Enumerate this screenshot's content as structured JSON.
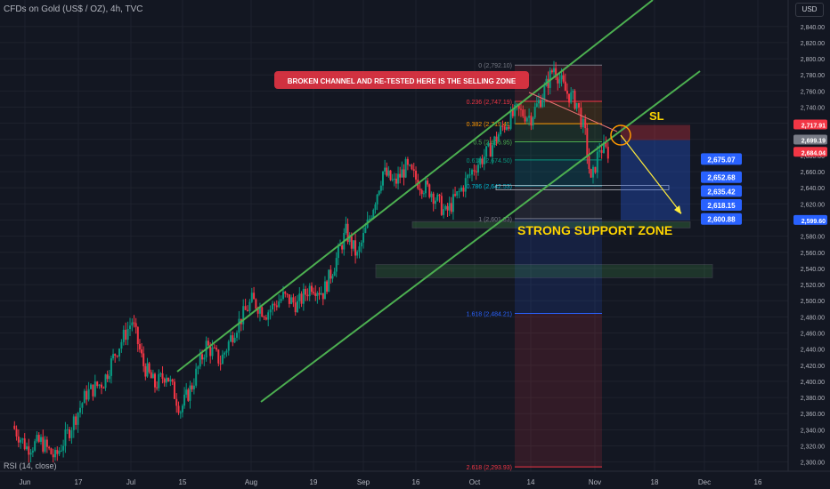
{
  "header": {
    "title": "CFDs on Gold (US$ / OZ), 4h, TVC",
    "currency": "USD"
  },
  "indicator_label": "RSI (14, close)",
  "chart_data": {
    "type": "candlestick",
    "title": "CFDs on Gold (US$ / OZ), 4h, TVC",
    "x_ticks": [
      "Jun",
      "17",
      "Jul",
      "15",
      "Aug",
      "19",
      "Sep",
      "16",
      "Oct",
      "14",
      "Nov",
      "18",
      "Dec",
      "16"
    ],
    "y_ticks": [
      2300,
      2320,
      2340,
      2360,
      2380,
      2400,
      2420,
      2440,
      2460,
      2480,
      2500,
      2520,
      2540,
      2560,
      2580,
      2600,
      2620,
      2640,
      2660,
      2680,
      2700,
      2720,
      2740,
      2760,
      2780,
      2800,
      2820,
      2840
    ],
    "y_tick_labels": [
      "2,300.00",
      "2,320.00",
      "2,340.00",
      "2,360.00",
      "2,380.00",
      "2,400.00",
      "2,420.00",
      "2,440.00",
      "2,460.00",
      "2,480.00",
      "2,500.00",
      "2,520.00",
      "2,540.00",
      "2,560.00",
      "2,580.00",
      "2,600.00",
      "2,620.00",
      "2,640.00",
      "2,660.00",
      "2,680.00",
      "2,700.00",
      "2,720.00",
      "2,740.00",
      "2,760.00",
      "2,780.00",
      "2,800.00",
      "2,820.00",
      "2,840.00"
    ],
    "ylim": [
      2293,
      2853
    ],
    "price_path": [
      {
        "x": 0,
        "y": 2345
      },
      {
        "x": 0.5,
        "y": 2318
      },
      {
        "x": 1,
        "y": 2325
      },
      {
        "x": 1.5,
        "y": 2305
      },
      {
        "x": 2,
        "y": 2340
      },
      {
        "x": 2.6,
        "y": 2385
      },
      {
        "x": 3.2,
        "y": 2400
      },
      {
        "x": 3.6,
        "y": 2435
      },
      {
        "x": 4.2,
        "y": 2475
      },
      {
        "x": 4.6,
        "y": 2420
      },
      {
        "x": 5.0,
        "y": 2395
      },
      {
        "x": 5.4,
        "y": 2410
      },
      {
        "x": 5.9,
        "y": 2365
      },
      {
        "x": 6.3,
        "y": 2395
      },
      {
        "x": 6.8,
        "y": 2445
      },
      {
        "x": 7.3,
        "y": 2425
      },
      {
        "x": 7.8,
        "y": 2465
      },
      {
        "x": 8.4,
        "y": 2500
      },
      {
        "x": 8.9,
        "y": 2485
      },
      {
        "x": 9.5,
        "y": 2505
      },
      {
        "x": 10.0,
        "y": 2495
      },
      {
        "x": 10.5,
        "y": 2520
      },
      {
        "x": 10.9,
        "y": 2510
      },
      {
        "x": 11.3,
        "y": 2545
      },
      {
        "x": 11.7,
        "y": 2585
      },
      {
        "x": 12.1,
        "y": 2555
      },
      {
        "x": 12.6,
        "y": 2610
      },
      {
        "x": 13.0,
        "y": 2660
      },
      {
        "x": 13.4,
        "y": 2645
      },
      {
        "x": 13.8,
        "y": 2665
      },
      {
        "x": 14.3,
        "y": 2645
      },
      {
        "x": 14.7,
        "y": 2635
      },
      {
        "x": 15.2,
        "y": 2608
      },
      {
        "x": 15.6,
        "y": 2630
      },
      {
        "x": 16.2,
        "y": 2665
      },
      {
        "x": 16.7,
        "y": 2685
      },
      {
        "x": 17.2,
        "y": 2715
      },
      {
        "x": 17.7,
        "y": 2735
      },
      {
        "x": 18.2,
        "y": 2728
      },
      {
        "x": 18.6,
        "y": 2755
      },
      {
        "x": 19.0,
        "y": 2790
      },
      {
        "x": 19.4,
        "y": 2760
      },
      {
        "x": 19.8,
        "y": 2745
      },
      {
        "x": 20.1,
        "y": 2705
      },
      {
        "x": 20.3,
        "y": 2645
      },
      {
        "x": 20.6,
        "y": 2690
      },
      {
        "x": 20.9,
        "y": 2684
      }
    ],
    "fib_levels": [
      {
        "ratio": "0",
        "price": 2792.1,
        "label": "0 (2,792.10)",
        "color": "#787b86"
      },
      {
        "ratio": "0.236",
        "price": 2747.19,
        "label": "0.236 (2,747.19)",
        "color": "#f23645"
      },
      {
        "ratio": "0.382",
        "price": 2719.41,
        "label": "0.382 (2,719.41)",
        "color": "#ff9800"
      },
      {
        "ratio": "0.5",
        "price": 2696.95,
        "label": "0.5 (2,696.95)",
        "color": "#4caf50"
      },
      {
        "ratio": "0.618",
        "price": 2674.5,
        "label": "0.618 (2,674.50)",
        "color": "#089981"
      },
      {
        "ratio": "0.786",
        "price": 2642.53,
        "label": "0.786 (2,642.53)",
        "color": "#00bcd4"
      },
      {
        "ratio": "1",
        "price": 2601.83,
        "label": "1 (2,601.83)",
        "color": "#787b86"
      },
      {
        "ratio": "1.618",
        "price": 2484.21,
        "label": "1.618 (2,484.21)",
        "color": "#2962ff"
      },
      {
        "ratio": "2.618",
        "price": 2293.93,
        "label": "2.618 (2,293.93)",
        "color": "#f23645"
      }
    ],
    "price_tags": [
      {
        "label": "2,717.91",
        "value": 2717.91,
        "color": "#f23645"
      },
      {
        "label": "2,699.19",
        "value": 2699.19,
        "color": "#787b86"
      },
      {
        "label": "2,684.04",
        "value": 2684.04,
        "color": "#f23645"
      },
      {
        "label": "2,599.60",
        "value": 2599.6,
        "color": "#2962ff"
      }
    ],
    "target_labels": [
      {
        "label": "2,675.07",
        "value": 2675.07
      },
      {
        "label": "2,652.68",
        "value": 2652.68
      },
      {
        "label": "2,635.42",
        "value": 2635.42
      },
      {
        "label": "2,618.15",
        "value": 2618.15
      },
      {
        "label": "2,600.88",
        "value": 2600.88
      }
    ],
    "annotations": {
      "selling_zone": "BROKEN CHANNEL AND RE-TESTED HERE IS THE SELLING ZONE",
      "support_zone": "STRONG SUPPORT ZONE",
      "stop_loss": "SL"
    },
    "colors": {
      "background": "#131722",
      "up": "#089981",
      "down": "#f23645",
      "channel": "#4caf50",
      "projection": "#ffeb3b"
    },
    "grid": true,
    "legend": "none"
  }
}
